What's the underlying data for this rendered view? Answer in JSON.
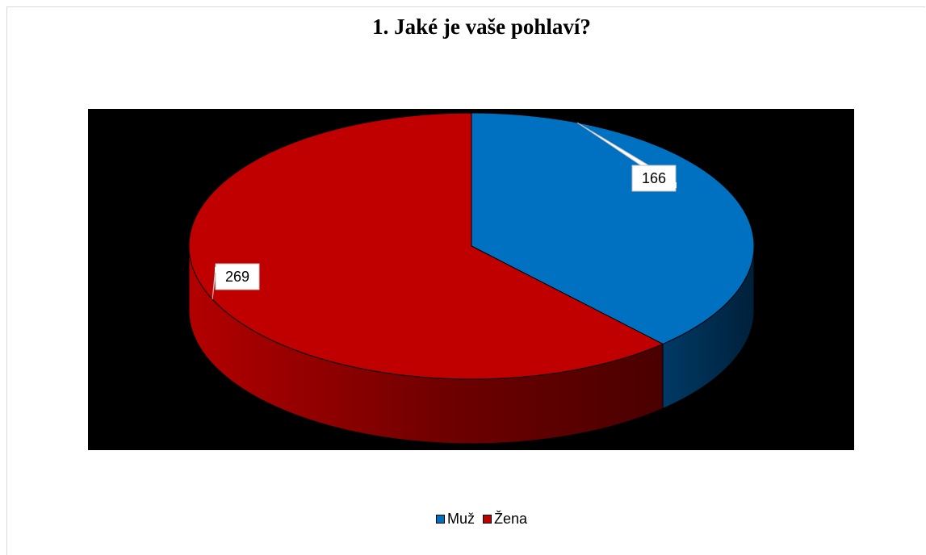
{
  "chart_data": {
    "type": "pie",
    "title": "1. Jaké je vaše pohlaví?",
    "categories": [
      "Muž",
      "Žena"
    ],
    "values": [
      166,
      269
    ],
    "colors": [
      "#0070C0",
      "#C00000"
    ],
    "legend_position": "bottom",
    "three_d": true,
    "plot_background": "#000000"
  }
}
